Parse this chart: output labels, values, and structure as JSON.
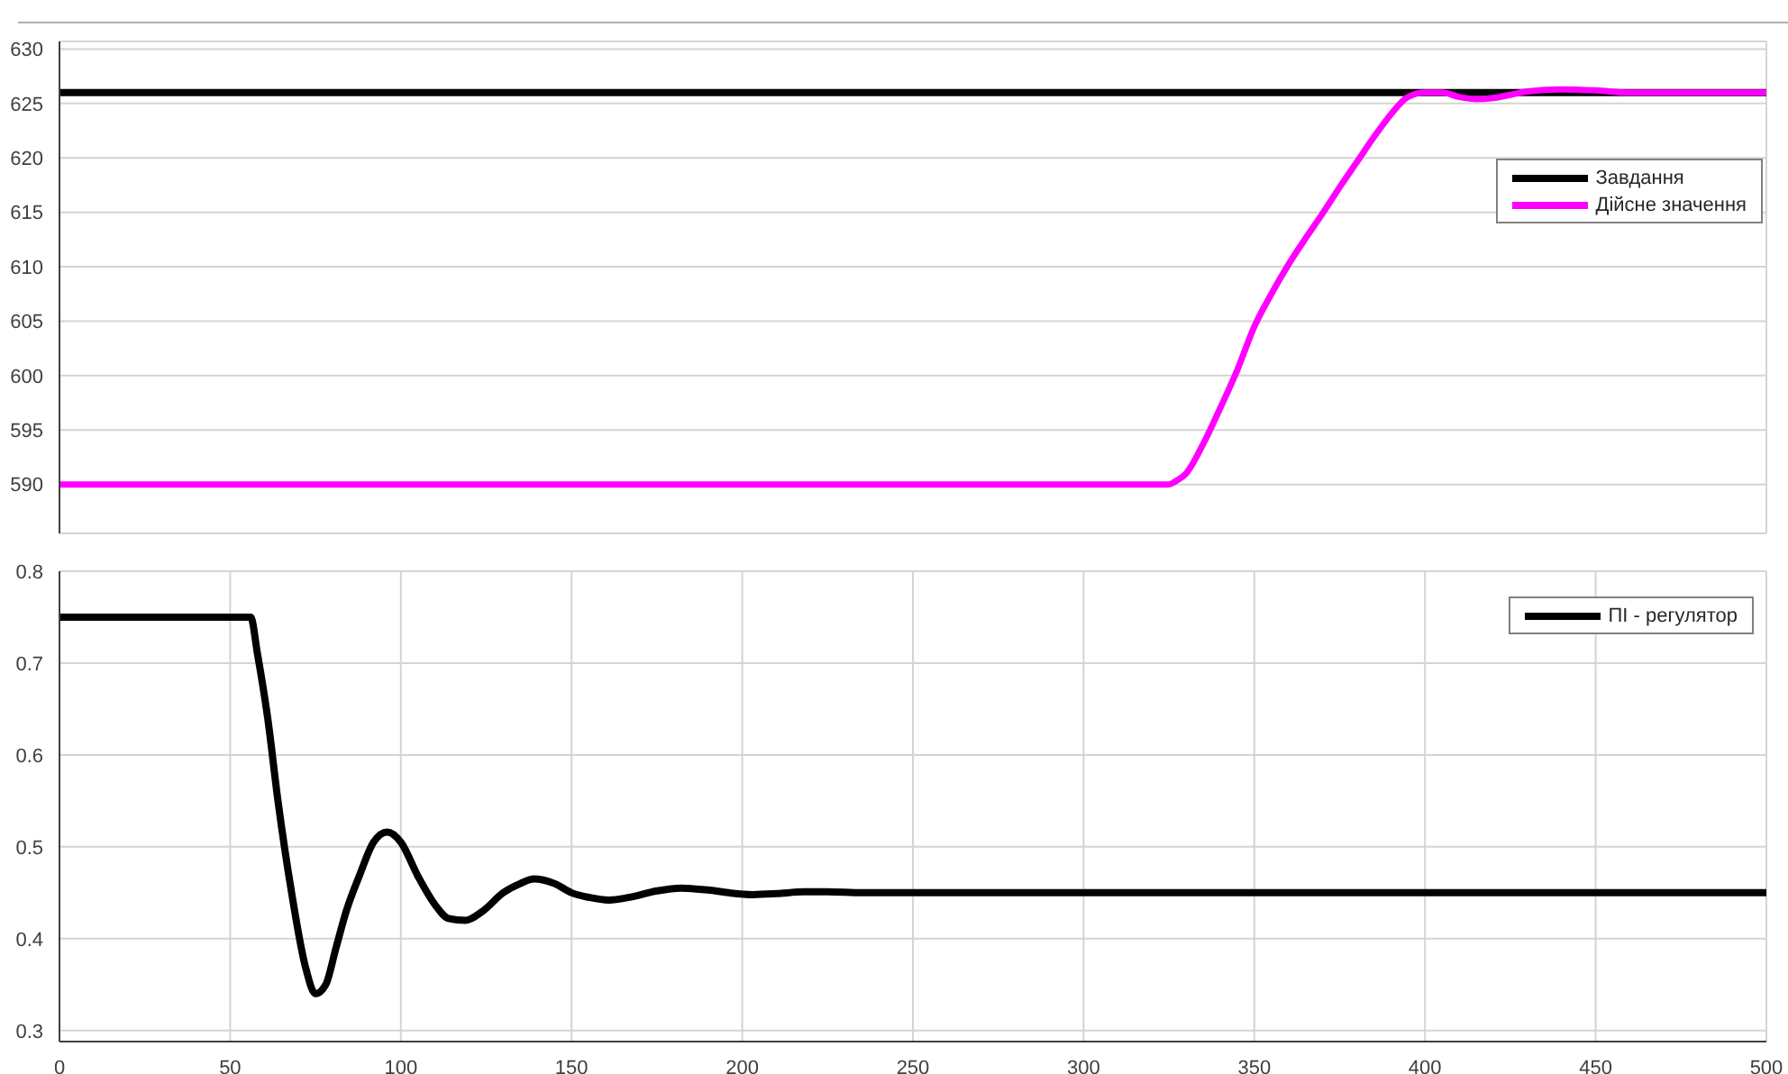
{
  "chart_data": [
    {
      "type": "line",
      "xlim": [
        0,
        500
      ],
      "xticks": [
        0,
        50,
        100,
        150,
        200,
        250,
        300,
        350,
        400,
        450,
        500
      ],
      "ylim": [
        585.5,
        630.7
      ],
      "yticks": [
        590,
        595,
        600,
        605,
        610,
        615,
        620,
        625,
        630
      ],
      "grid": true,
      "legend": "top right",
      "tick_labels": "y",
      "marker": "none",
      "line_style": "solid",
      "series": [
        {
          "name": "Завдання",
          "color": "#000000",
          "x": [
            0,
            100,
            200,
            300,
            400,
            500
          ],
          "values": [
            626,
            626,
            626,
            626,
            626,
            626
          ]
        },
        {
          "name": "Дійсне значення",
          "color": "#ff00ff",
          "x": [
            0,
            100,
            200,
            300,
            325,
            327,
            330,
            335,
            340,
            345,
            350,
            355,
            360,
            365,
            370,
            375,
            380,
            385,
            390,
            395,
            400,
            405,
            410,
            415,
            420,
            425,
            430,
            440,
            450,
            460,
            480,
            500
          ],
          "values": [
            590,
            590,
            590,
            590,
            590,
            590.3,
            591,
            593.7,
            597,
            600.5,
            604.5,
            607.5,
            610.2,
            612.6,
            614.9,
            617.3,
            619.6,
            621.9,
            624,
            625.6,
            626,
            626,
            625.6,
            625.4,
            625.5,
            625.8,
            626.1,
            626.3,
            626.2,
            626,
            626,
            626
          ]
        }
      ]
    },
    {
      "type": "line",
      "xlim": [
        0,
        500
      ],
      "xticks": [
        0,
        50,
        100,
        150,
        200,
        250,
        300,
        350,
        400,
        450,
        500
      ],
      "ylim": [
        0.288,
        0.8
      ],
      "yticks": [
        0.3,
        0.4,
        0.5,
        0.6,
        0.7,
        0.8
      ],
      "grid": true,
      "legend": "top right",
      "marker": "none",
      "line_style": "solid",
      "series": [
        {
          "name": "ПІ - регулятор",
          "color": "#000000",
          "x": [
            0,
            30,
            56,
            58,
            61,
            64,
            68,
            72,
            75,
            78,
            81,
            84,
            88,
            92,
            96,
            100,
            105,
            110,
            114,
            119,
            124,
            130,
            135,
            139,
            145,
            150,
            155,
            161,
            167,
            175,
            182,
            190,
            196,
            203,
            210,
            218,
            225,
            235,
            250,
            300,
            350,
            400,
            450,
            500
          ],
          "values": [
            0.75,
            0.75,
            0.75,
            0.71,
            0.64,
            0.55,
            0.45,
            0.37,
            0.34,
            0.35,
            0.39,
            0.43,
            0.47,
            0.505,
            0.516,
            0.505,
            0.468,
            0.437,
            0.422,
            0.42,
            0.43,
            0.45,
            0.46,
            0.465,
            0.46,
            0.45,
            0.445,
            0.442,
            0.445,
            0.452,
            0.455,
            0.453,
            0.45,
            0.448,
            0.449,
            0.451,
            0.451,
            0.45,
            0.45,
            0.45,
            0.45,
            0.45,
            0.45,
            0.45
          ]
        }
      ]
    }
  ]
}
